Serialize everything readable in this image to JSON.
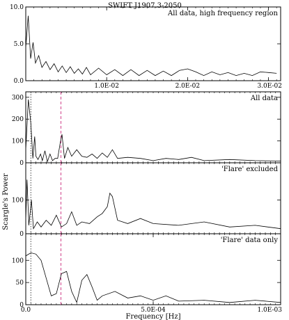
{
  "figure_title": "SWIFT J1907.3-2050",
  "colors": {
    "line": "#000000",
    "marker": "#d0408a",
    "marker_dotted": "#444444"
  },
  "chart_data": [
    {
      "type": "line",
      "title": "All data, high frequency region",
      "xlim": [
        0.0,
        0.0315
      ],
      "ylim": [
        0,
        10
      ],
      "yticks": [
        {
          "v": 0,
          "label": "0.0"
        },
        {
          "v": 5,
          "label": "5.0"
        },
        {
          "v": 10,
          "label": "10.0"
        }
      ],
      "xticks": [
        {
          "v": 0.01,
          "label": "1.0E-02"
        },
        {
          "v": 0.02,
          "label": "2.0E-02"
        },
        {
          "v": 0.03,
          "label": "3.0E-02"
        }
      ],
      "minor_x_step": 0.001,
      "series": [
        {
          "x": [
            0.0,
            0.0003,
            0.0006,
            0.0009,
            0.0012,
            0.0016,
            0.002,
            0.0025,
            0.003,
            0.0035,
            0.004,
            0.0045,
            0.005,
            0.0055,
            0.006,
            0.0065,
            0.007,
            0.0075,
            0.008,
            0.009,
            0.01,
            0.011,
            0.012,
            0.013,
            0.014,
            0.015,
            0.016,
            0.017,
            0.018,
            0.019,
            0.02,
            0.021,
            0.022,
            0.023,
            0.024,
            0.025,
            0.026,
            0.027,
            0.028,
            0.029,
            0.03,
            0.031
          ],
          "y": [
            4.5,
            8.8,
            3.0,
            5.2,
            2.4,
            3.4,
            1.8,
            2.6,
            1.5,
            2.3,
            1.2,
            2.0,
            1.1,
            1.9,
            1.0,
            1.6,
            0.9,
            1.8,
            0.8,
            1.7,
            0.8,
            1.5,
            0.7,
            1.5,
            0.7,
            1.4,
            0.7,
            1.3,
            0.7,
            1.4,
            1.6,
            1.2,
            0.7,
            1.2,
            0.8,
            1.1,
            0.7,
            1.0,
            0.7,
            1.2,
            1.1,
            1.0
          ]
        }
      ]
    },
    {
      "type": "line",
      "title": "All data",
      "xlim": [
        0.0,
        0.001
      ],
      "ylim": [
        0,
        325
      ],
      "yticks": [
        {
          "v": 0,
          "label": "0"
        },
        {
          "v": 100,
          "label": "100"
        },
        {
          "v": 200,
          "label": "200"
        },
        {
          "v": 300,
          "label": "300"
        }
      ],
      "markers": [
        {
          "x": 2e-05,
          "style": "dotted"
        },
        {
          "x": 0.000138,
          "style": "dashed"
        }
      ],
      "series": [
        {
          "x": [
            0.0,
            1e-05,
            2e-05,
            2.8e-05,
            3.5e-05,
            4e-05,
            4.8e-05,
            5.8e-05,
            6.5e-05,
            7.5e-05,
            8.5e-05,
            9.5e-05,
            0.000105,
            0.000115,
            0.000125,
            0.000135,
            0.000142,
            0.000152,
            0.000165,
            0.00018,
            0.0002,
            0.00022,
            0.00024,
            0.00026,
            0.00028,
            0.0003,
            0.00032,
            0.00034,
            0.00036,
            0.0004,
            0.00045,
            0.0005,
            0.00055,
            0.0006,
            0.00065,
            0.0007,
            0.0008,
            0.0009,
            0.001
          ],
          "y": [
            60,
            290,
            180,
            20,
            120,
            30,
            15,
            40,
            10,
            55,
            5,
            40,
            10,
            20,
            20,
            90,
            130,
            20,
            70,
            30,
            60,
            30,
            25,
            40,
            20,
            45,
            25,
            60,
            20,
            25,
            20,
            10,
            20,
            15,
            25,
            10,
            15,
            10,
            8
          ]
        }
      ]
    },
    {
      "type": "line",
      "title": "'Flare' excluded",
      "xlim": [
        0.0,
        0.001
      ],
      "ylim": [
        0,
        210
      ],
      "yticks": [
        {
          "v": 0,
          "label": "0"
        },
        {
          "v": 100,
          "label": "100"
        }
      ],
      "markers": [
        {
          "x": 2e-05,
          "style": "dotted"
        },
        {
          "x": 0.000138,
          "style": "dashed"
        }
      ],
      "series": [
        {
          "x": [
            0.0,
            5e-06,
            1.2e-05,
            2.2e-05,
            3e-05,
            4.5e-05,
            6e-05,
            8e-05,
            0.0001,
            0.00012,
            0.00014,
            0.00016,
            0.00018,
            0.0002,
            0.00022,
            0.00025,
            0.00028,
            0.0003,
            0.00032,
            0.00033,
            0.00034,
            0.00036,
            0.0004,
            0.00045,
            0.0005,
            0.0006,
            0.0007,
            0.0008,
            0.0009,
            0.001
          ],
          "y": [
            40,
            160,
            25,
            100,
            15,
            35,
            20,
            40,
            25,
            55,
            20,
            30,
            65,
            25,
            35,
            30,
            50,
            60,
            80,
            120,
            110,
            40,
            30,
            45,
            30,
            25,
            35,
            20,
            25,
            15
          ]
        }
      ]
    },
    {
      "type": "line",
      "title": "'Flare' data only",
      "xlim": [
        0.0,
        0.001
      ],
      "ylim": [
        0,
        160
      ],
      "yticks": [
        {
          "v": 0,
          "label": "0"
        },
        {
          "v": 50,
          "label": "50"
        },
        {
          "v": 100,
          "label": "100"
        }
      ],
      "xticks": [
        {
          "v": 0,
          "label": "0.0"
        },
        {
          "v": 0.0005,
          "label": "5.0E-04"
        },
        {
          "v": 0.001,
          "label": "1.0E-03"
        }
      ],
      "markers": [
        {
          "x": 2e-05,
          "style": "dotted"
        },
        {
          "x": 0.000138,
          "style": "dashed"
        }
      ],
      "xlabel": "Frequency [Hz]",
      "series": [
        {
          "x": [
            0.0,
            2e-05,
            4e-05,
            6e-05,
            8e-05,
            0.0001,
            0.00012,
            0.00014,
            0.00016,
            0.00018,
            0.0002,
            0.00022,
            0.00024,
            0.00026,
            0.00028,
            0.0003,
            0.00035,
            0.0004,
            0.00045,
            0.0005,
            0.00055,
            0.0006,
            0.0007,
            0.0008,
            0.0009,
            0.001
          ],
          "y": [
            110,
            117,
            114,
            100,
            60,
            20,
            25,
            70,
            75,
            30,
            5,
            55,
            68,
            40,
            10,
            20,
            30,
            15,
            20,
            10,
            20,
            8,
            10,
            5,
            10,
            5
          ]
        }
      ]
    }
  ],
  "shared_ylabel": "Scargle's Power"
}
